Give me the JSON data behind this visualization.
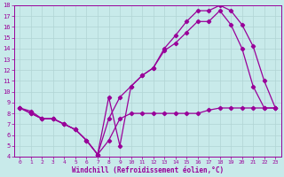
{
  "xlabel": "Windchill (Refroidissement éolien,°C)",
  "background_color": "#c8eaea",
  "grid_color": "#b0d4d4",
  "line_color": "#990099",
  "xlim": [
    -0.5,
    23.5
  ],
  "ylim": [
    4,
    18
  ],
  "xticks": [
    0,
    1,
    2,
    3,
    4,
    5,
    6,
    7,
    8,
    9,
    10,
    11,
    12,
    13,
    14,
    15,
    16,
    17,
    18,
    19,
    20,
    21,
    22,
    23
  ],
  "yticks": [
    4,
    5,
    6,
    7,
    8,
    9,
    10,
    11,
    12,
    13,
    14,
    15,
    16,
    17,
    18
  ],
  "line1_x": [
    0,
    1,
    2,
    3,
    4,
    5,
    6,
    7,
    8,
    9,
    10,
    11,
    12,
    13,
    14,
    15,
    16,
    17,
    18,
    19,
    20,
    21,
    22,
    23
  ],
  "line1_y": [
    8.5,
    8.0,
    7.5,
    7.5,
    7.0,
    6.5,
    5.5,
    4.2,
    5.5,
    7.5,
    8.0,
    8.0,
    8.0,
    8.0,
    8.0,
    8.0,
    8.0,
    8.3,
    8.5,
    8.5,
    8.5,
    8.5,
    8.5,
    8.5
  ],
  "line2_x": [
    0,
    1,
    2,
    3,
    4,
    5,
    6,
    7,
    8,
    9,
    10,
    11,
    12,
    13,
    14,
    15,
    16,
    17,
    18,
    19,
    20,
    21,
    22,
    23
  ],
  "line2_y": [
    8.5,
    8.0,
    7.5,
    7.5,
    7.0,
    6.5,
    5.5,
    4.2,
    9.5,
    5.0,
    10.5,
    11.5,
    12.2,
    13.8,
    14.5,
    15.5,
    16.5,
    16.5,
    17.5,
    16.2,
    14.0,
    10.5,
    8.5,
    8.5
  ],
  "line3_x": [
    0,
    1,
    2,
    3,
    4,
    5,
    6,
    7,
    8,
    9,
    10,
    11,
    12,
    13,
    14,
    15,
    16,
    17,
    18,
    19,
    20,
    21,
    22,
    23
  ],
  "line3_y": [
    8.5,
    8.2,
    7.5,
    7.5,
    7.0,
    6.5,
    5.5,
    4.2,
    7.5,
    9.5,
    10.5,
    11.5,
    12.2,
    14.0,
    15.2,
    16.5,
    17.5,
    17.5,
    18.0,
    17.5,
    16.2,
    14.2,
    11.0,
    8.5
  ],
  "marker": "D",
  "markersize": 2.2,
  "linewidth": 0.9
}
